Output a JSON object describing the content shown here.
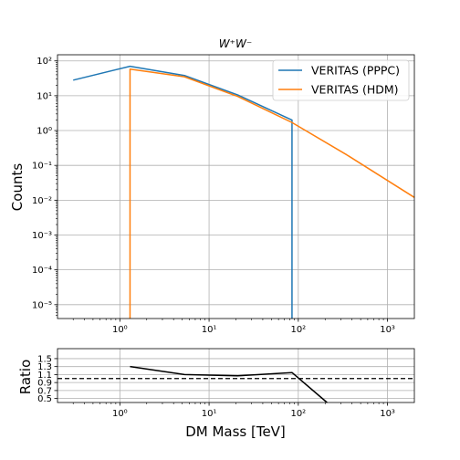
{
  "chart_data": [
    {
      "type": "line",
      "title": "W⁺W⁻",
      "xlabel": "",
      "ylabel": "Counts",
      "x_scale": "log",
      "y_scale": "log",
      "xlim": [
        0.2,
        2000
      ],
      "ylim": [
        4e-06,
        150
      ],
      "grid": true,
      "legend_position": "top-right",
      "x_tick_labels": [
        "10⁰",
        "10¹",
        "10²",
        "10³"
      ],
      "y_tick_labels": [
        "10⁻⁵",
        "10⁻⁴",
        "10⁻³",
        "10⁻²",
        "10⁻¹",
        "10⁰",
        "10¹",
        "10²"
      ],
      "series": [
        {
          "name": "VERITAS (PPPC)",
          "color": "#1f77b4",
          "x": [
            0.3,
            1.3,
            5.3,
            21,
            85,
            85,
            85
          ],
          "y": [
            28,
            70,
            38,
            10.5,
            2.0,
            0.5,
            4e-06
          ]
        },
        {
          "name": "VERITAS (HDM)",
          "color": "#ff7f0e",
          "x": [
            1.3,
            1.3,
            1.3,
            5.3,
            21,
            85,
            350,
            2000
          ],
          "y": [
            4e-06,
            0.5,
            58,
            35,
            9.5,
            1.7,
            0.2,
            0.012
          ]
        }
      ]
    },
    {
      "type": "line",
      "xlabel": "DM Mass [TeV]",
      "ylabel": "Ratio",
      "x_scale": "log",
      "y_scale": "linear",
      "xlim": [
        0.2,
        2000
      ],
      "ylim": [
        0.4,
        1.75
      ],
      "grid": true,
      "x_tick_labels": [
        "10⁰",
        "10¹",
        "10²",
        "10³"
      ],
      "y_ticks": [
        0.5,
        0.7,
        0.9,
        1.1,
        1.3,
        1.5
      ],
      "y_tick_labels": [
        "0.5",
        "0.7",
        "0.9",
        "1.1",
        "1.3",
        "1.5"
      ],
      "reference_line": 1.0,
      "series": [
        {
          "color": "#000000",
          "x": [
            1.3,
            5.3,
            21,
            85,
            210
          ],
          "y": [
            1.3,
            1.1,
            1.07,
            1.15,
            0.4
          ]
        }
      ]
    }
  ]
}
